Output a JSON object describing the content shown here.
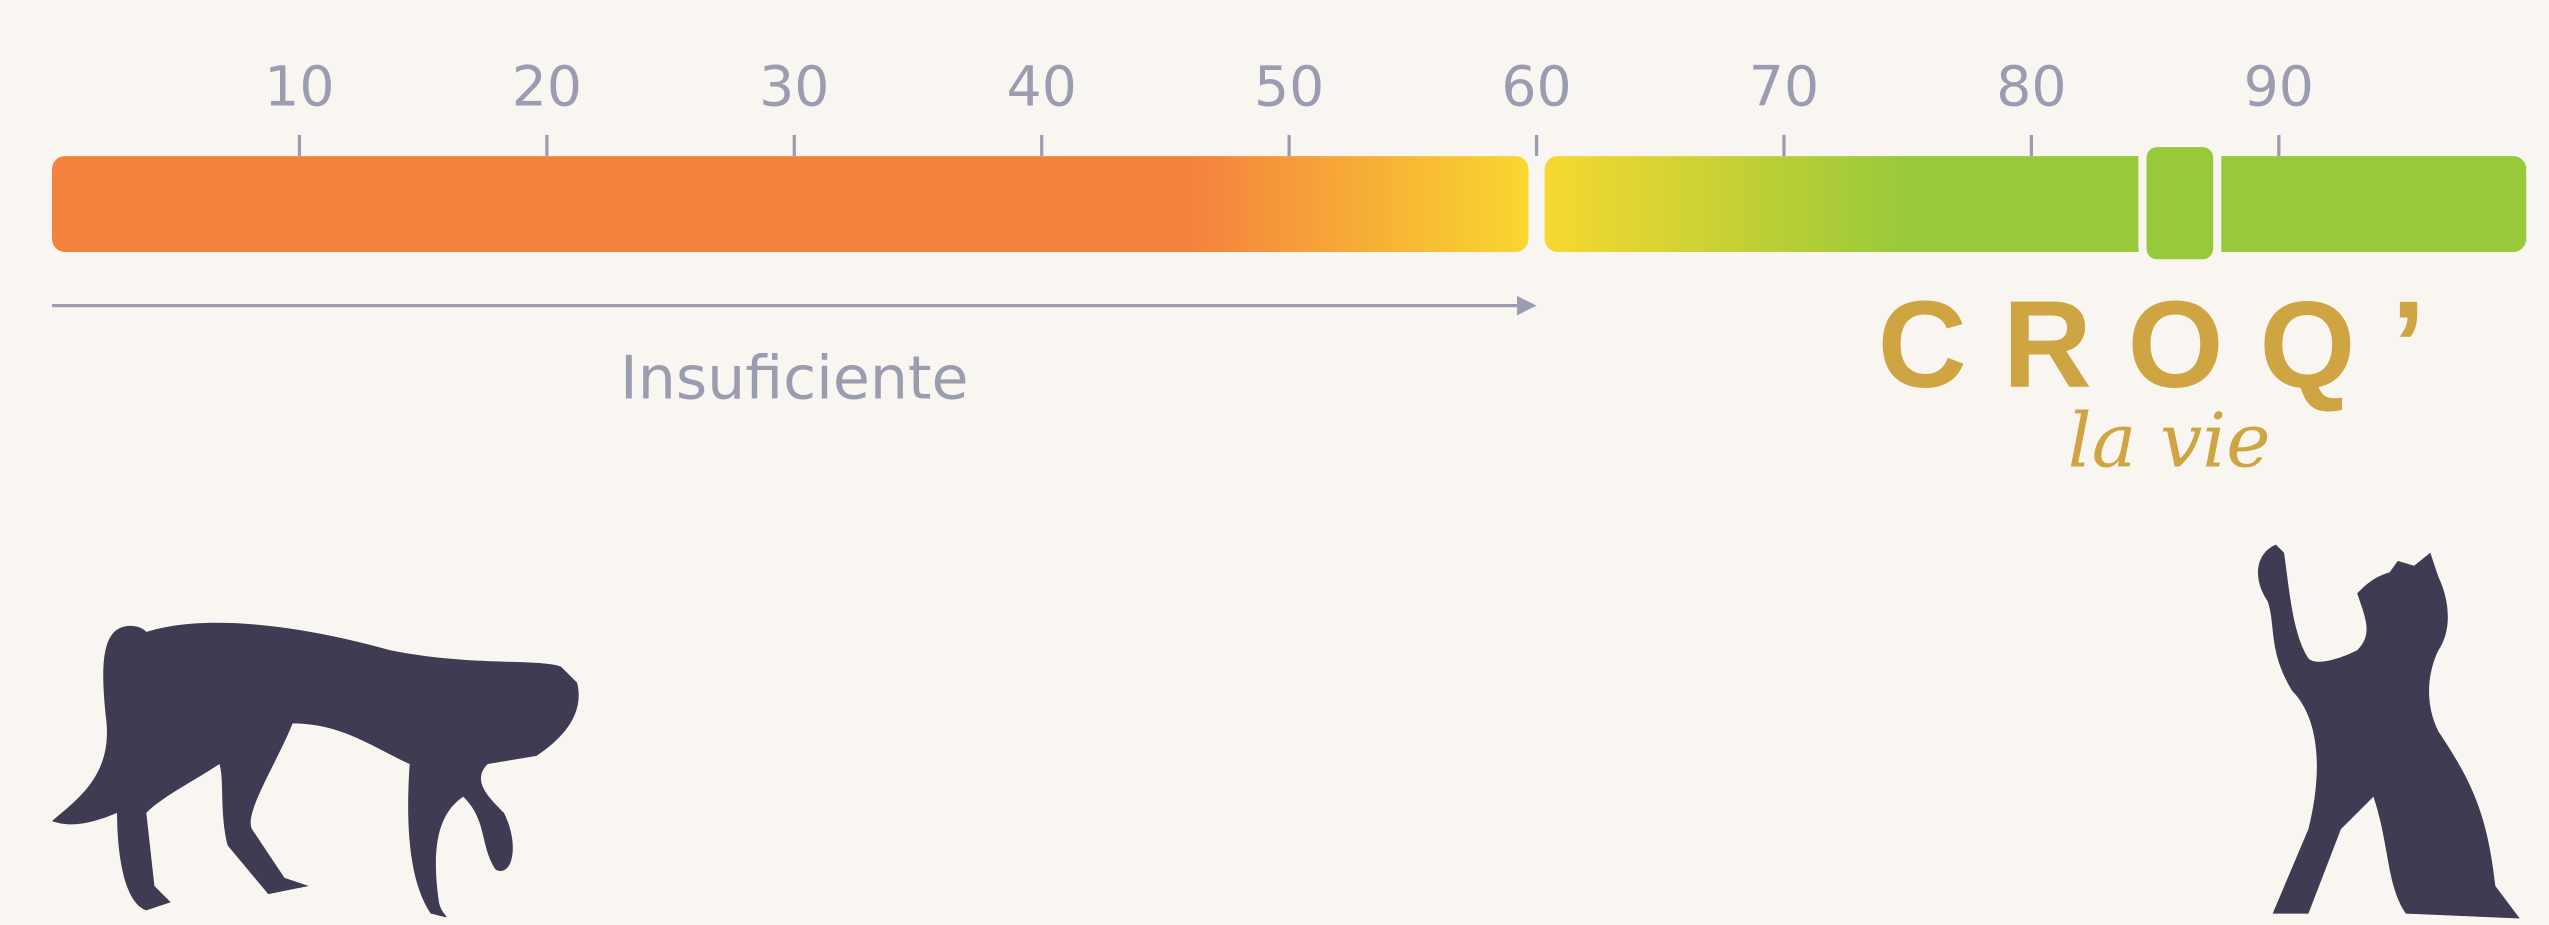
{
  "scale": {
    "lim": [
      0,
      100
    ],
    "ticks": [
      10,
      20,
      30,
      40,
      50,
      60,
      70,
      80,
      90
    ],
    "threshold": 60,
    "marker": 86,
    "threshold_label": "Insuficiente"
  },
  "logo": {
    "name": "CROQ’",
    "tagline": "la vie"
  }
}
